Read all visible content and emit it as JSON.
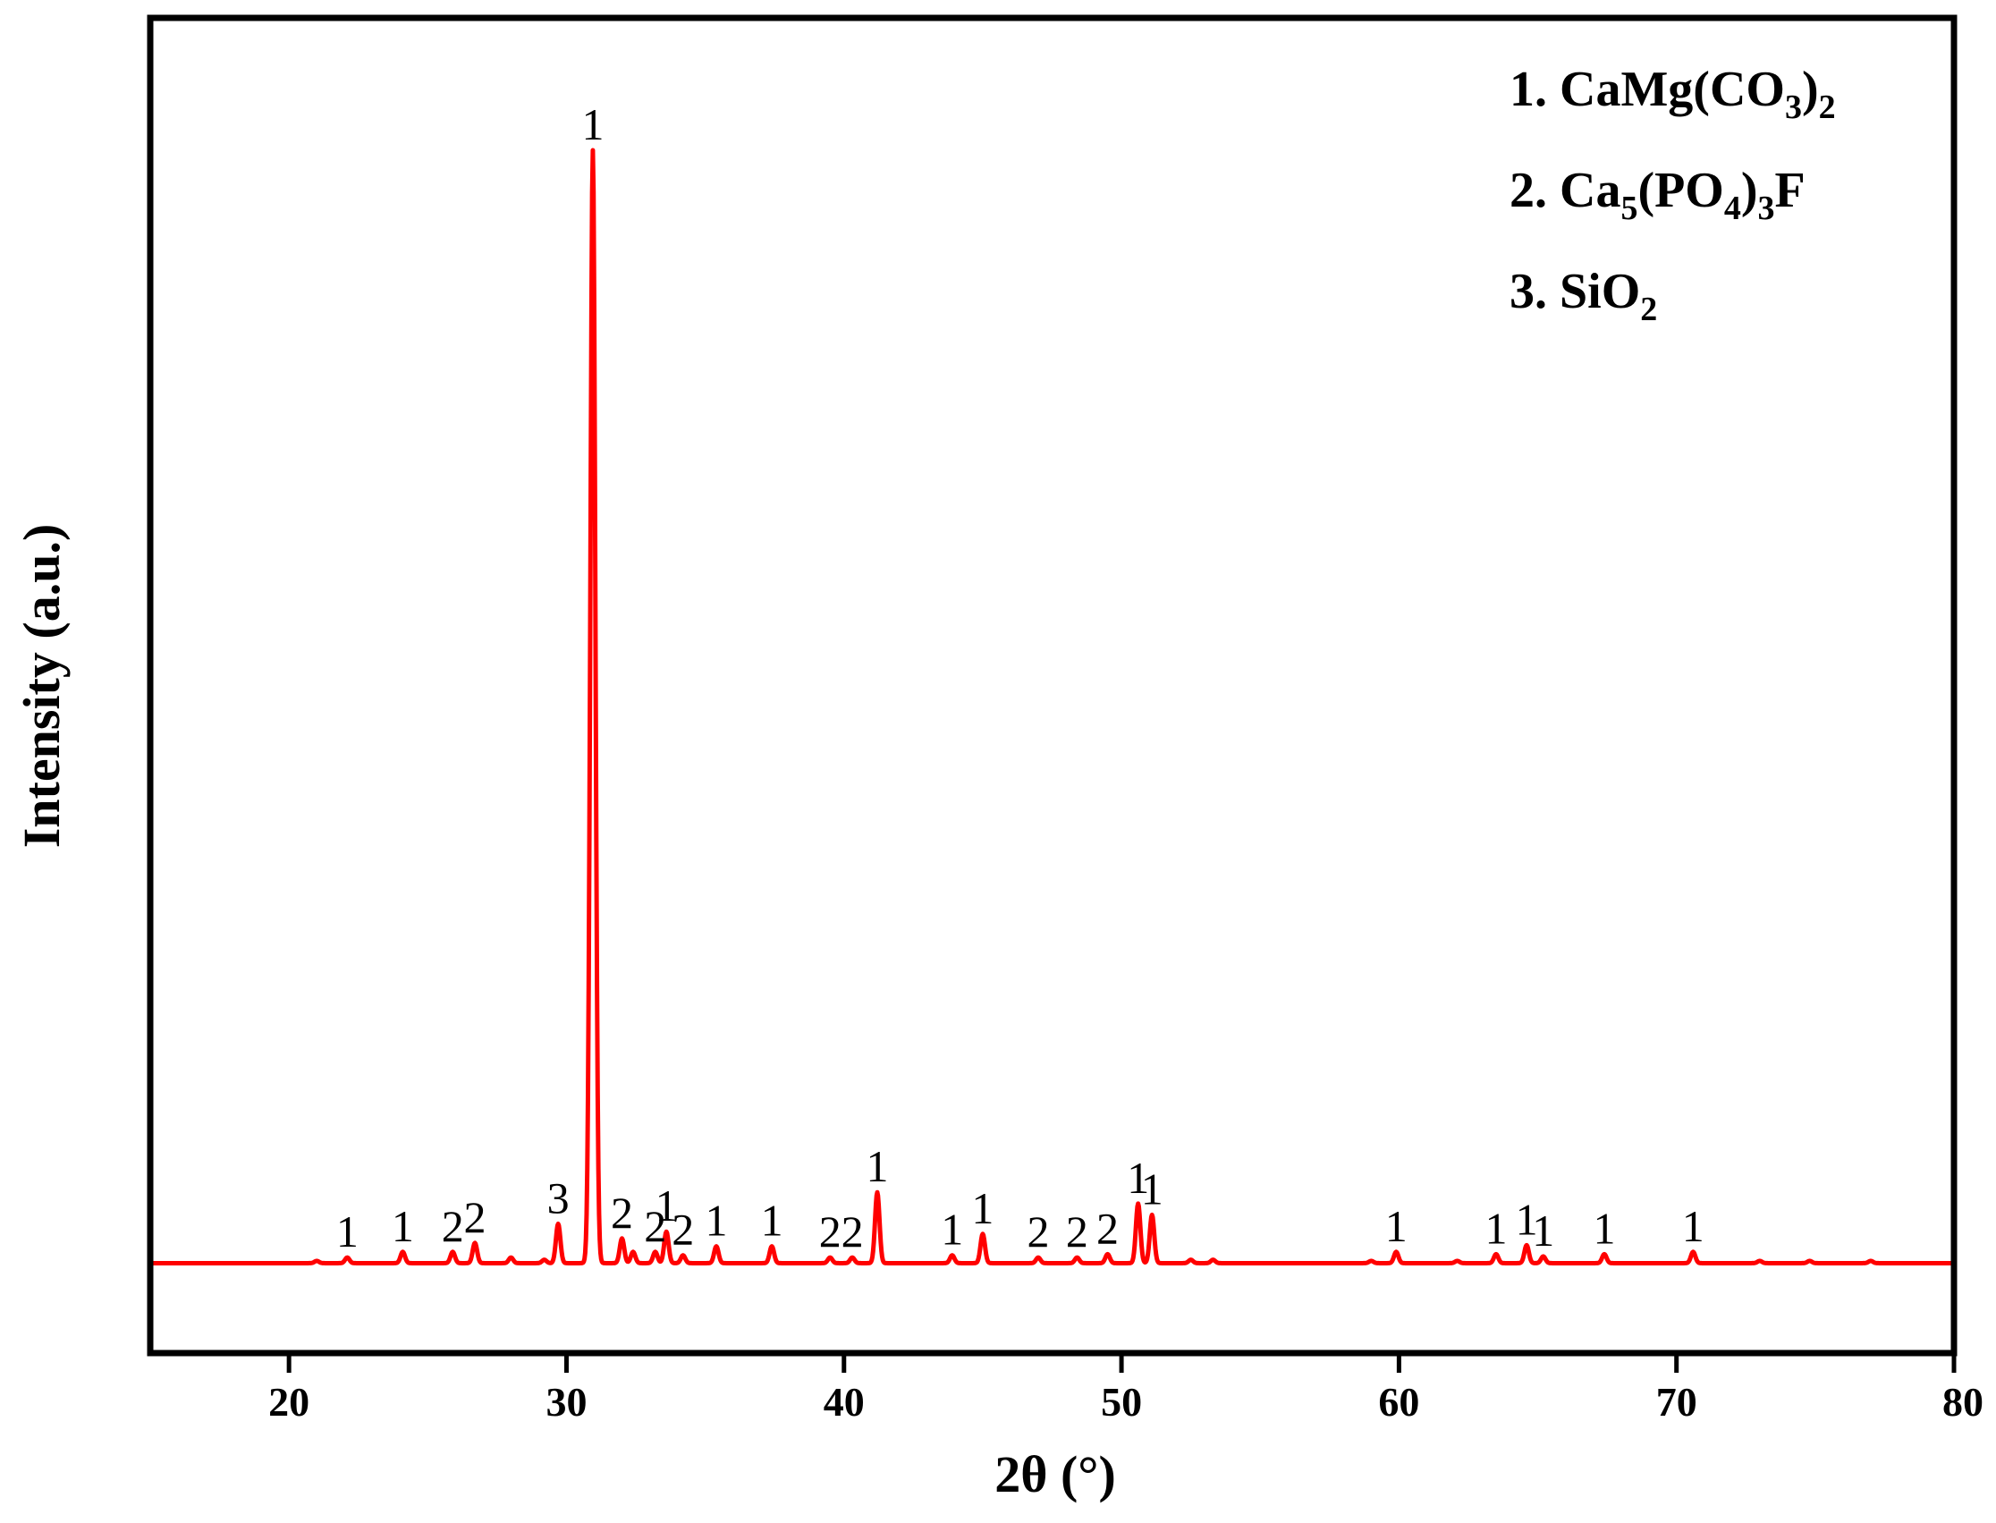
{
  "chart_data": {
    "type": "line",
    "title": "",
    "xlabel": "2θ (°)",
    "ylabel": "Intensity (a.u.)",
    "xlim": [
      15,
      80
    ],
    "ylim": [
      -7,
      100
    ],
    "xticks": [
      20,
      30,
      40,
      50,
      60,
      70,
      80
    ],
    "yticks": [],
    "grid": false,
    "colors": {
      "series": "#ff0000",
      "axes": "#000000"
    },
    "legend": {
      "placement": "top-right",
      "entries": [
        {
          "id": "1",
          "prefix": "1. ",
          "parts": [
            [
              "CaMg(CO",
              "normal"
            ],
            [
              "3",
              "sub"
            ],
            [
              ")",
              "normal"
            ],
            [
              "2",
              "sub"
            ]
          ]
        },
        {
          "id": "2",
          "prefix": "2. ",
          "parts": [
            [
              "Ca",
              "normal"
            ],
            [
              "5",
              "sub"
            ],
            [
              "(PO",
              "normal"
            ],
            [
              "4",
              "sub"
            ],
            [
              ")",
              "normal"
            ],
            [
              "3",
              "sub"
            ],
            [
              "F",
              "normal"
            ]
          ]
        },
        {
          "id": "3",
          "prefix": "3. ",
          "parts": [
            [
              "SiO",
              "normal"
            ],
            [
              "2",
              "sub"
            ]
          ]
        }
      ]
    },
    "series": [
      {
        "baseline": 1,
        "peaks": [
          {
            "x": 21.0,
            "y": 1.2,
            "label": ""
          },
          {
            "x": 22.1,
            "y": 1.5,
            "label": "1"
          },
          {
            "x": 24.1,
            "y": 2.0,
            "label": "1"
          },
          {
            "x": 25.9,
            "y": 2.0,
            "label": "2"
          },
          {
            "x": 26.7,
            "y": 2.8,
            "label": "2"
          },
          {
            "x": 28.0,
            "y": 1.5,
            "label": ""
          },
          {
            "x": 29.2,
            "y": 1.3,
            "label": ""
          },
          {
            "x": 29.7,
            "y": 4.5,
            "label": "3"
          },
          {
            "x": 30.95,
            "y": 100.0,
            "label": "1"
          },
          {
            "x": 32.0,
            "y": 3.2,
            "label": "2"
          },
          {
            "x": 32.4,
            "y": 2.0,
            "label": ""
          },
          {
            "x": 33.2,
            "y": 2.0,
            "label": "2"
          },
          {
            "x": 33.6,
            "y": 3.8,
            "label": "1"
          },
          {
            "x": 34.2,
            "y": 1.7,
            "label": "2"
          },
          {
            "x": 35.4,
            "y": 2.5,
            "label": "1"
          },
          {
            "x": 37.4,
            "y": 2.5,
            "label": "1"
          },
          {
            "x": 39.5,
            "y": 1.5,
            "label": "2"
          },
          {
            "x": 40.3,
            "y": 1.5,
            "label": "2"
          },
          {
            "x": 41.2,
            "y": 7.3,
            "label": "1"
          },
          {
            "x": 43.9,
            "y": 1.7,
            "label": "1"
          },
          {
            "x": 45.0,
            "y": 3.6,
            "label": "1"
          },
          {
            "x": 47.0,
            "y": 1.5,
            "label": "2"
          },
          {
            "x": 48.4,
            "y": 1.5,
            "label": "2"
          },
          {
            "x": 49.5,
            "y": 1.8,
            "label": "2"
          },
          {
            "x": 50.6,
            "y": 6.3,
            "label": "1"
          },
          {
            "x": 51.1,
            "y": 5.3,
            "label": "1"
          },
          {
            "x": 52.5,
            "y": 1.3,
            "label": ""
          },
          {
            "x": 53.3,
            "y": 1.3,
            "label": ""
          },
          {
            "x": 59.0,
            "y": 1.2,
            "label": ""
          },
          {
            "x": 59.9,
            "y": 2.0,
            "label": "1"
          },
          {
            "x": 62.1,
            "y": 1.2,
            "label": ""
          },
          {
            "x": 63.5,
            "y": 1.8,
            "label": "1"
          },
          {
            "x": 64.6,
            "y": 2.6,
            "label": "1"
          },
          {
            "x": 65.2,
            "y": 1.6,
            "label": "1"
          },
          {
            "x": 67.4,
            "y": 1.8,
            "label": "1"
          },
          {
            "x": 70.6,
            "y": 2.0,
            "label": "1"
          },
          {
            "x": 73.0,
            "y": 1.2,
            "label": ""
          },
          {
            "x": 74.8,
            "y": 1.2,
            "label": ""
          },
          {
            "x": 77.0,
            "y": 1.2,
            "label": ""
          }
        ]
      }
    ]
  }
}
